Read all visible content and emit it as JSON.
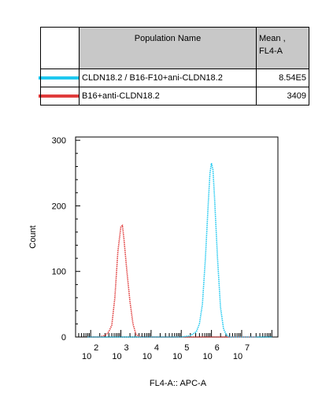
{
  "legend": {
    "header": {
      "name": "Population Name",
      "mean_line1": "Mean ,",
      "mean_line2": "FL4-A"
    },
    "rows": [
      {
        "name": "CLDN18.2 / B16-F10+ani-CLDN18.2",
        "value": "8.54E5",
        "color": "#1ec8f0"
      },
      {
        "name": "B16+anti-CLDN18.2",
        "value": "3409",
        "color": "#e03c3c"
      }
    ]
  },
  "chart_data": {
    "type": "line",
    "xlabel": "FL4-A:: APC-A",
    "ylabel": "Count",
    "x_scale": "log",
    "xlim_log10": [
      1.5,
      8.2
    ],
    "ylim": [
      0,
      305
    ],
    "y_ticks": [
      0,
      100,
      200,
      300
    ],
    "x_tick_labels": [
      {
        "base": "10",
        "exp": "2",
        "at_log10": 2
      },
      {
        "base": "10",
        "exp": "3",
        "at_log10": 3
      },
      {
        "base": "10",
        "exp": "4",
        "at_log10": 4
      },
      {
        "base": "10",
        "exp": "5",
        "at_log10": 5
      },
      {
        "base": "10",
        "exp": "6",
        "at_log10": 6
      },
      {
        "base": "10",
        "exp": "7",
        "at_log10": 7
      }
    ],
    "series": [
      {
        "color": "#e03c3c",
        "log10_x": [
          1.9,
          2.3,
          2.5,
          2.6,
          2.7,
          2.8,
          2.9,
          3.0,
          3.05,
          3.1,
          3.2,
          3.3,
          3.4,
          3.5,
          3.6,
          3.8,
          5.0,
          6.0,
          7.5
        ],
        "y": [
          0,
          0,
          3,
          8,
          18,
          60,
          130,
          168,
          170,
          150,
          100,
          55,
          20,
          4,
          1,
          0,
          0,
          0,
          0
        ]
      },
      {
        "color": "#1ec8f0",
        "log10_x": [
          1.9,
          5.0,
          5.3,
          5.5,
          5.6,
          5.7,
          5.8,
          5.9,
          5.95,
          6.0,
          6.05,
          6.1,
          6.2,
          6.3,
          6.4,
          6.5,
          6.6,
          7.0,
          8.0
        ],
        "y": [
          0,
          0,
          2,
          8,
          20,
          50,
          120,
          210,
          250,
          265,
          255,
          215,
          120,
          45,
          12,
          3,
          0,
          0,
          0
        ]
      }
    ]
  }
}
